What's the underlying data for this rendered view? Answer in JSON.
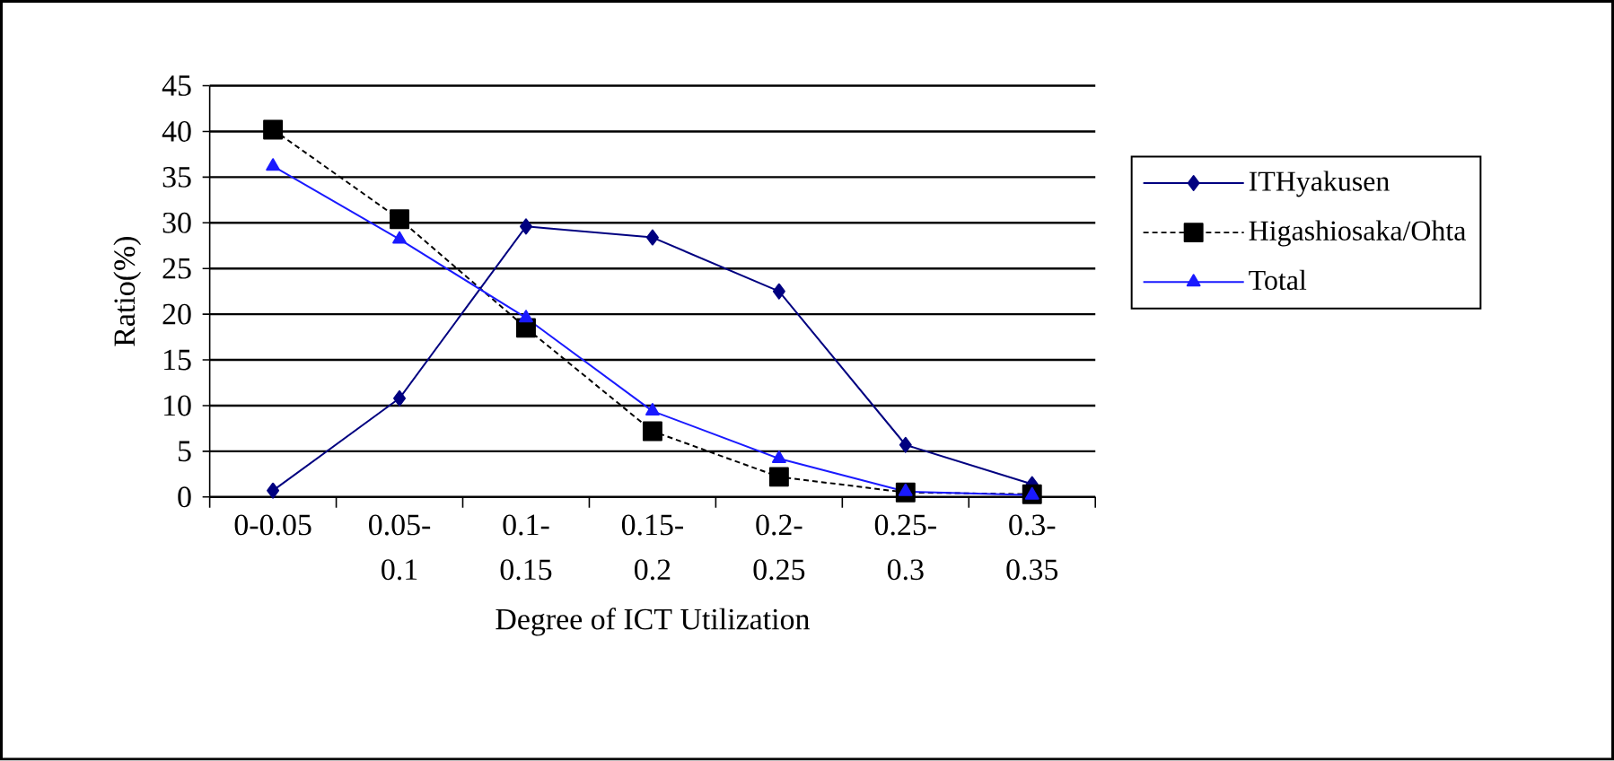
{
  "chart_data": {
    "type": "line",
    "xlabel": "Degree of ICT Utilization",
    "ylabel": "Ratio(%)",
    "categories": [
      "0-0.05",
      "0.05-0.1",
      "0.1-0.15",
      "0.15-0.2",
      "0.2-0.25",
      "0.25-0.3",
      "0.3-0.35"
    ],
    "series": [
      {
        "name": "ITHyakusen",
        "color": "#000080",
        "marker": "diamond",
        "line_style": "solid",
        "values": [
          0.7,
          10.8,
          29.6,
          28.4,
          22.5,
          5.7,
          1.4
        ]
      },
      {
        "name": "Higashiosaka/Ohta",
        "color": "#000000",
        "marker": "square",
        "line_style": "dotted",
        "values": [
          40.2,
          30.4,
          18.5,
          7.2,
          2.2,
          0.5,
          0.3
        ]
      },
      {
        "name": "Total",
        "color": "#1a1aff",
        "marker": "triangle",
        "line_style": "solid",
        "values": [
          36.2,
          28.2,
          19.6,
          9.4,
          4.2,
          0.6,
          0.2
        ]
      }
    ],
    "ylim": [
      0,
      45
    ],
    "yticks": [
      0,
      5,
      10,
      15,
      20,
      25,
      30,
      35,
      40,
      45
    ],
    "grid": "y",
    "legend": "right"
  }
}
